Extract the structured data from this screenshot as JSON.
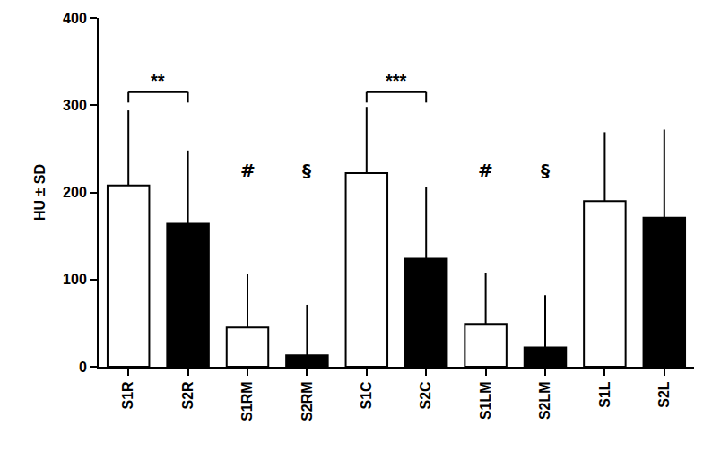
{
  "chart_data": {
    "type": "bar",
    "y_label": "HU ± SD",
    "categories": [
      "S1R",
      "S2R",
      "S1RM",
      "S2RM",
      "S1C",
      "S2C",
      "S1LM",
      "S2LM",
      "S1L",
      "S2L"
    ],
    "values": [
      208,
      164,
      45,
      13,
      222,
      124,
      49,
      22,
      190,
      171
    ],
    "errors": [
      86,
      84,
      62,
      58,
      76,
      82,
      59,
      60,
      79,
      101
    ],
    "colors": [
      "#ffffff",
      "#000000",
      "#ffffff",
      "#000000",
      "#ffffff",
      "#000000",
      "#ffffff",
      "#000000",
      "#ffffff",
      "#000000"
    ],
    "ylim": [
      0,
      400
    ],
    "yticks": [
      0,
      100,
      200,
      300,
      400
    ],
    "grid": false,
    "brackets": [
      {
        "text": "**",
        "from": "S1R",
        "to": "S2R",
        "y": 315
      },
      {
        "text": "***",
        "from": "S1C",
        "to": "S2C",
        "y": 315
      }
    ],
    "annotations": [
      {
        "text": "#",
        "x": "S1RM",
        "y": 225
      },
      {
        "text": "§",
        "x": "S2RM",
        "y": 225
      },
      {
        "text": "#",
        "x": "S1LM",
        "y": 225
      },
      {
        "text": "§",
        "x": "S2LM",
        "y": 225
      }
    ]
  }
}
